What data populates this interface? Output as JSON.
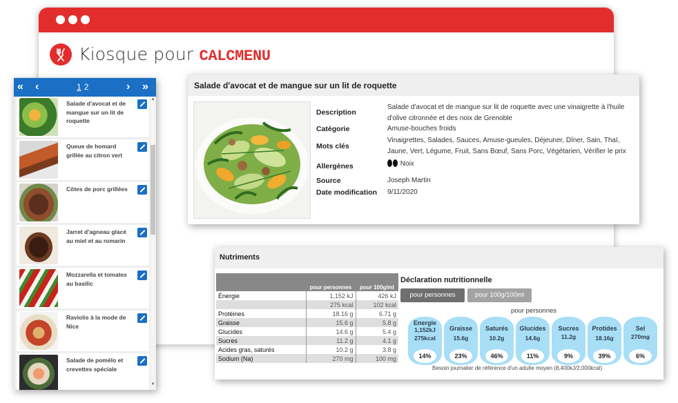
{
  "brand": {
    "prefix": "Kiosque pour",
    "name": "CALCMENU",
    "accent": "#e32d2d"
  },
  "list": {
    "nav": {
      "first": "«",
      "prev": "‹",
      "next": "›",
      "last": "»",
      "pages": [
        "1",
        "2"
      ],
      "current_page": "1"
    },
    "items": [
      {
        "label": "Salade d'avocat et de mangue sur un lit de roquette"
      },
      {
        "label": "Queue de homard grillée au citron vert"
      },
      {
        "label": "Côtes de porc grillées"
      },
      {
        "label": "Jarret d'agneau glacé au miel et au romarin"
      },
      {
        "label": "Mozzarella et tomates au basilic"
      },
      {
        "label": "Raviolis à la mode de Nice"
      },
      {
        "label": "Salade de pomélo et crevettes spéciale"
      }
    ],
    "accent": "#1b6fc4"
  },
  "detail": {
    "title": "Salade d'avocat et de mangue sur un lit de roquette",
    "labels": {
      "description": "Description",
      "category": "Catégorie",
      "keywords": "Mots clés",
      "allergens": "Allergènes",
      "source": "Source",
      "date": "Date modification"
    },
    "values": {
      "description": "Salade d'avocat et de mangue sur lit de roquette avec une vinaigrette à l'huile d'olive citronnée et des noix de Grenoble",
      "category": "Amuse-bouches froids",
      "keywords": "Vinaigrettes, Salades, Sauces, Amuse-gueules, Déjeuner, Dîner, Sain, Thaï, Jaune, Vert, Légume, Fruit, Sans Bœuf, Sans Porc, Végétarien, Vérifier le prix",
      "allergens": "Noix",
      "source": "Joseph Martin",
      "date": "9/11/2020"
    }
  },
  "nutrients": {
    "title": "Nutriments",
    "columns": [
      "",
      "pour personnes",
      "pour 100g/ml"
    ],
    "rows": [
      {
        "name": "Énergie",
        "v1": "1,152 kJ",
        "v2": "426 kJ"
      },
      {
        "name": "",
        "v1": "275 kcal",
        "v2": "102 kcal"
      },
      {
        "name": "Protéines",
        "v1": "18.16 g",
        "v2": "6.71 g"
      },
      {
        "name": "Graisse",
        "v1": "15.6 g",
        "v2": "5.8 g"
      },
      {
        "name": "Glucides",
        "v1": "14.6 g",
        "v2": "5.4 g"
      },
      {
        "name": "Sucres",
        "v1": "11.2 g",
        "v2": "4.1 g"
      },
      {
        "name": "Acides gras, saturés",
        "v1": "10.2 g",
        "v2": "3.8 g"
      },
      {
        "name": "Sodium (Na)",
        "v1": "270 mg",
        "v2": "100 mg"
      }
    ],
    "declaration": {
      "title": "Déclaration nutritionnelle",
      "btn_active": "pour personnes",
      "btn_inactive": "pour 100g/100ml",
      "per_label": "pour personnes",
      "badges": [
        {
          "name": "Energie",
          "value1": "1,152kJ",
          "value2": "275kcal",
          "pct": "14%"
        },
        {
          "name": "Graisse",
          "value1": "15.6g",
          "value2": "",
          "pct": "23%"
        },
        {
          "name": "Saturés",
          "value1": "10.2g",
          "value2": "",
          "pct": "46%"
        },
        {
          "name": "Glucides",
          "value1": "14.6g",
          "value2": "",
          "pct": "11%"
        },
        {
          "name": "Sucres",
          "value1": "11.2g",
          "value2": "",
          "pct": "9%"
        },
        {
          "name": "Protides",
          "value1": "18.16g",
          "value2": "",
          "pct": "39%"
        },
        {
          "name": "Sel",
          "value1": "270mg",
          "value2": "",
          "pct": "6%"
        }
      ],
      "note": "Besoin journalier de référence d'un adulte moyen (8,400kJ/2,000kcal)",
      "badge_color": "#a8def6"
    }
  }
}
